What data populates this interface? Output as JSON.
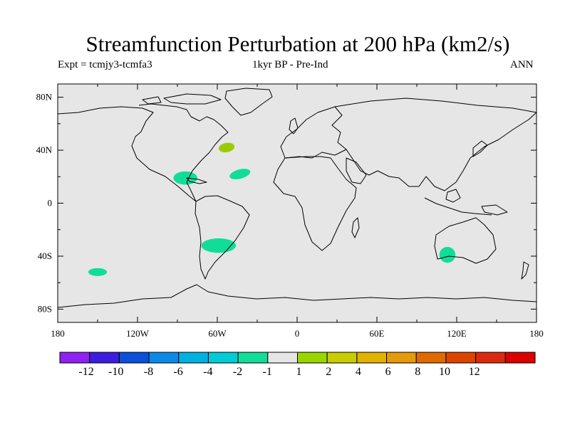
{
  "title": "Streamfunction Perturbation at 200 hPa (km2/s)",
  "experiment": "Expt = tcmjy3-tcmfa3",
  "period": "1kyr BP - Pre-Ind",
  "season": "ANN",
  "map": {
    "lon_range": [
      -180,
      180
    ],
    "lat_range": [
      -90,
      90
    ],
    "ocean_color": "#e6e6e6",
    "lat_ticks": [
      {
        "lat": 80,
        "label": "80N"
      },
      {
        "lat": 40,
        "label": "40N"
      },
      {
        "lat": 0,
        "label": "0"
      },
      {
        "lat": -40,
        "label": "40S"
      },
      {
        "lat": -80,
        "label": "80S"
      }
    ],
    "lon_ticks": [
      {
        "lon": -180,
        "label": "180"
      },
      {
        "lon": -120,
        "label": "120W"
      },
      {
        "lon": -60,
        "label": "60W"
      },
      {
        "lon": 0,
        "label": "0"
      },
      {
        "lon": 60,
        "label": "60E"
      },
      {
        "lon": 120,
        "label": "120E"
      },
      {
        "lon": 180,
        "label": "180"
      }
    ]
  },
  "anomalies": [
    {
      "name": "north-atlantic-positive",
      "lon": -53,
      "lat": 42,
      "rlon": 6,
      "rlat": 3.5,
      "rot": -10,
      "color": "#99cc00"
    },
    {
      "name": "central-america-negative",
      "lon": -84,
      "lat": 19,
      "rlon": 9,
      "rlat": 5,
      "rot": 0,
      "color": "#11dd99"
    },
    {
      "name": "subtropical-atlantic-negative",
      "lon": -43,
      "lat": 22,
      "rlon": 8,
      "rlat": 3.5,
      "rot": -15,
      "color": "#11dd99"
    },
    {
      "name": "south-america-negative",
      "lon": -59,
      "lat": -32,
      "rlon": 13,
      "rlat": 5.5,
      "rot": 0,
      "color": "#11dd99"
    },
    {
      "name": "south-pacific-negative",
      "lon": -150,
      "lat": -52,
      "rlon": 7,
      "rlat": 3,
      "rot": 0,
      "color": "#11dd99"
    },
    {
      "name": "australia-negative",
      "lon": 113,
      "lat": -39,
      "rlon": 6,
      "rlat": 6,
      "rot": 0,
      "color": "#11dd99"
    }
  ],
  "colorbar": {
    "colors": [
      "#8f22f0",
      "#3d1ee0",
      "#0a50d8",
      "#0a8ae6",
      "#00b1e0",
      "#00ccd6",
      "#11dd99",
      "#e6e6e6",
      "#99d600",
      "#c8cc00",
      "#e1b200",
      "#e6990a",
      "#e06a00",
      "#dd4400",
      "#dc2a10",
      "#dc0000"
    ],
    "labels": [
      "-12",
      "-10",
      "-8",
      "-6",
      "-4",
      "-2",
      "-1",
      "1",
      "2",
      "4",
      "6",
      "8",
      "10",
      "12"
    ]
  }
}
